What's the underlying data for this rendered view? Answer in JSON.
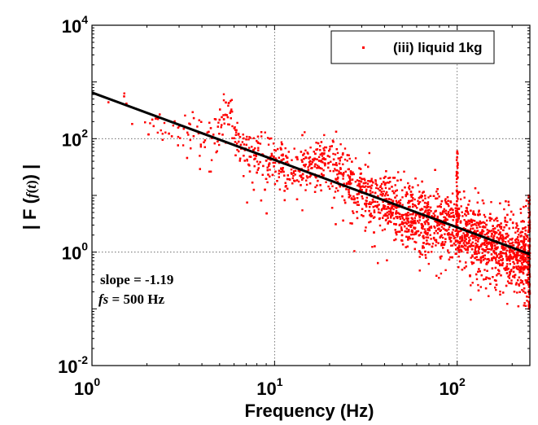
{
  "chart_data": {
    "type": "scatter",
    "scale": {
      "x": "log",
      "y": "log"
    },
    "xlim": [
      1,
      250
    ],
    "ylim": [
      0.01,
      10000
    ],
    "xticks": [
      {
        "base": "10",
        "exp": "0",
        "value": 1
      },
      {
        "base": "10",
        "exp": "1",
        "value": 10
      },
      {
        "base": "10",
        "exp": "2",
        "value": 100
      }
    ],
    "yticks": [
      {
        "base": "10",
        "exp": "-2",
        "value": 0.01
      },
      {
        "base": "10",
        "exp": "0",
        "value": 1
      },
      {
        "base": "10",
        "exp": "2",
        "value": 100
      },
      {
        "base": "10",
        "exp": "4",
        "value": 10000
      }
    ],
    "xlabel": "Frequency (Hz)",
    "ylabel": {
      "prefix": "| F (",
      "fn": "f",
      "paren_open": "(",
      "var": "t",
      "paren_close": ")",
      "suffix": ") |"
    },
    "grid": true,
    "legend": {
      "position": "top-right",
      "entries": [
        {
          "label": "(iii) liquid 1kg",
          "color": "#ff0000",
          "marker": "dot"
        }
      ]
    },
    "series": [
      {
        "name": "(iii) liquid 1kg",
        "color": "#ff0000",
        "kind": "scatter",
        "trend": {
          "slope": -1.19,
          "y_at_x1": 650
        },
        "peaks": [
          {
            "x": 5.6,
            "y": 420
          },
          {
            "x": 20,
            "y": 48
          },
          {
            "x": 100,
            "y": 12
          },
          {
            "x": 100,
            "y": 60
          }
        ]
      },
      {
        "kind": "fit-line",
        "color": "#000000",
        "points": [
          {
            "x": 1,
            "y": 650
          },
          {
            "x": 250,
            "y": 0.92
          }
        ]
      }
    ],
    "annotations": {
      "slope_label": "slope = -1.19",
      "fs_var": "fs",
      "fs_rest": " = 500 Hz"
    }
  }
}
